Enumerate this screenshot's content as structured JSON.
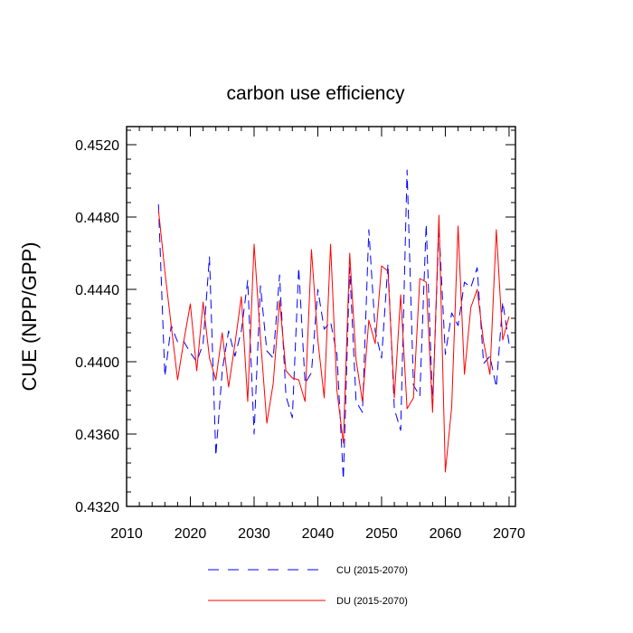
{
  "chart_data": {
    "type": "line",
    "title": "carbon use efficiency",
    "xlabel": "",
    "ylabel": "CUE  (NPP/GPP)",
    "xlim": [
      2010,
      2071
    ],
    "ylim": [
      0.432,
      0.453
    ],
    "xticks": [
      2010,
      2020,
      2030,
      2040,
      2050,
      2060,
      2070
    ],
    "yticks": [
      0.432,
      0.436,
      0.44,
      0.444,
      0.448,
      0.452
    ],
    "ytick_labels": [
      "0.4320",
      "0.4360",
      "0.4400",
      "0.4440",
      "0.4480",
      "0.4520"
    ],
    "grid": false,
    "legend_position": "bottom",
    "x": [
      2015,
      2016,
      2017,
      2018,
      2019,
      2020,
      2021,
      2022,
      2023,
      2024,
      2025,
      2026,
      2027,
      2028,
      2029,
      2030,
      2031,
      2032,
      2033,
      2034,
      2035,
      2036,
      2037,
      2038,
      2039,
      2040,
      2041,
      2042,
      2043,
      2044,
      2045,
      2046,
      2047,
      2048,
      2049,
      2050,
      2051,
      2052,
      2053,
      2054,
      2055,
      2056,
      2057,
      2058,
      2059,
      2060,
      2061,
      2062,
      2063,
      2064,
      2065,
      2066,
      2067,
      2068,
      2069,
      2070
    ],
    "series": [
      {
        "name": "CU (2015-2070)",
        "color": "#0000ff",
        "style": "dashed",
        "values": [
          0.4487,
          0.4392,
          0.442,
          0.4411,
          0.4411,
          0.4405,
          0.44,
          0.441,
          0.4458,
          0.4348,
          0.4395,
          0.4417,
          0.4403,
          0.4417,
          0.4445,
          0.436,
          0.4442,
          0.4406,
          0.4402,
          0.4448,
          0.4381,
          0.4369,
          0.4452,
          0.4388,
          0.4394,
          0.444,
          0.4418,
          0.4422,
          0.4404,
          0.4335,
          0.4452,
          0.4378,
          0.4372,
          0.4473,
          0.4417,
          0.4402,
          0.4454,
          0.4374,
          0.4362,
          0.4506,
          0.4387,
          0.4381,
          0.4476,
          0.4376,
          0.4474,
          0.4404,
          0.4427,
          0.442,
          0.4444,
          0.4441,
          0.4452,
          0.4399,
          0.4403,
          0.4386,
          0.4433,
          0.441
        ]
      },
      {
        "name": "DU (2015-2070)",
        "color": "#ff0000",
        "style": "solid",
        "values": [
          0.4484,
          0.445,
          0.442,
          0.439,
          0.4412,
          0.4432,
          0.4395,
          0.4433,
          0.4402,
          0.439,
          0.4416,
          0.4386,
          0.441,
          0.4436,
          0.4378,
          0.4465,
          0.4413,
          0.4366,
          0.4388,
          0.4434,
          0.4395,
          0.4391,
          0.439,
          0.4378,
          0.4462,
          0.4412,
          0.438,
          0.4465,
          0.4384,
          0.4355,
          0.446,
          0.4401,
          0.4378,
          0.4423,
          0.441,
          0.4453,
          0.445,
          0.438,
          0.4437,
          0.4374,
          0.438,
          0.4446,
          0.4444,
          0.4372,
          0.4481,
          0.4339,
          0.4375,
          0.4475,
          0.4393,
          0.443,
          0.444,
          0.4411,
          0.4393,
          0.4473,
          0.4412,
          0.4425
        ]
      }
    ]
  }
}
